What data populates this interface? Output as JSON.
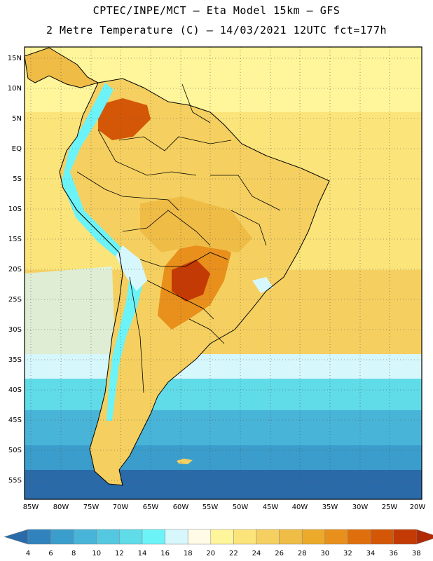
{
  "title": {
    "line1": "CPTEC/INPE/MCT –  Eta Model 15km – GFS",
    "line2": "2 Metre Temperature (C) – 14/03/2021 12UTC fct=177h"
  },
  "axes": {
    "lat_labels": [
      "15N",
      "10N",
      "5N",
      "EQ",
      "5S",
      "10S",
      "15S",
      "20S",
      "25S",
      "30S",
      "35S",
      "40S",
      "45S",
      "50S",
      "55S"
    ],
    "lon_labels": [
      "85W",
      "80W",
      "75W",
      "70W",
      "65W",
      "60W",
      "55W",
      "50W",
      "45W",
      "40W",
      "35W",
      "30W",
      "25W",
      "20W"
    ]
  },
  "colorbar": {
    "labels": [
      "4",
      "6",
      "8",
      "10",
      "12",
      "14",
      "16",
      "18",
      "20",
      "22",
      "24",
      "26",
      "28",
      "30",
      "32",
      "34",
      "36",
      "38"
    ],
    "colors": [
      "#2a6aa9",
      "#3183bd",
      "#3a9dcb",
      "#48b4d8",
      "#54c8e0",
      "#60dbe8",
      "#6cf3f8",
      "#d6f7fb",
      "#fffbe6",
      "#fff59a",
      "#fbe47a",
      "#f5d060",
      "#efbc46",
      "#ecaa2a",
      "#e88f1c",
      "#df6f0c",
      "#d45707",
      "#c43a05",
      "#b12a04"
    ]
  },
  "ocean_colors": {
    "far_north": "#fff59a",
    "tropical": "#fbe47a",
    "subtropical": "#f5d060",
    "s35": "#d6f7fb",
    "s40": "#60dbe8",
    "s45": "#48b4d8",
    "s50": "#3a9dcb",
    "s55": "#2a6aa9"
  },
  "land_colors": {
    "base": "#f5d060",
    "warm": "#efbc46",
    "hot": "#e88f1c",
    "hotter": "#d45707",
    "hottest": "#c43a05",
    "andes": "#6cf3f8",
    "andes_high": "#d6f7fb",
    "south": "#fbe47a"
  }
}
